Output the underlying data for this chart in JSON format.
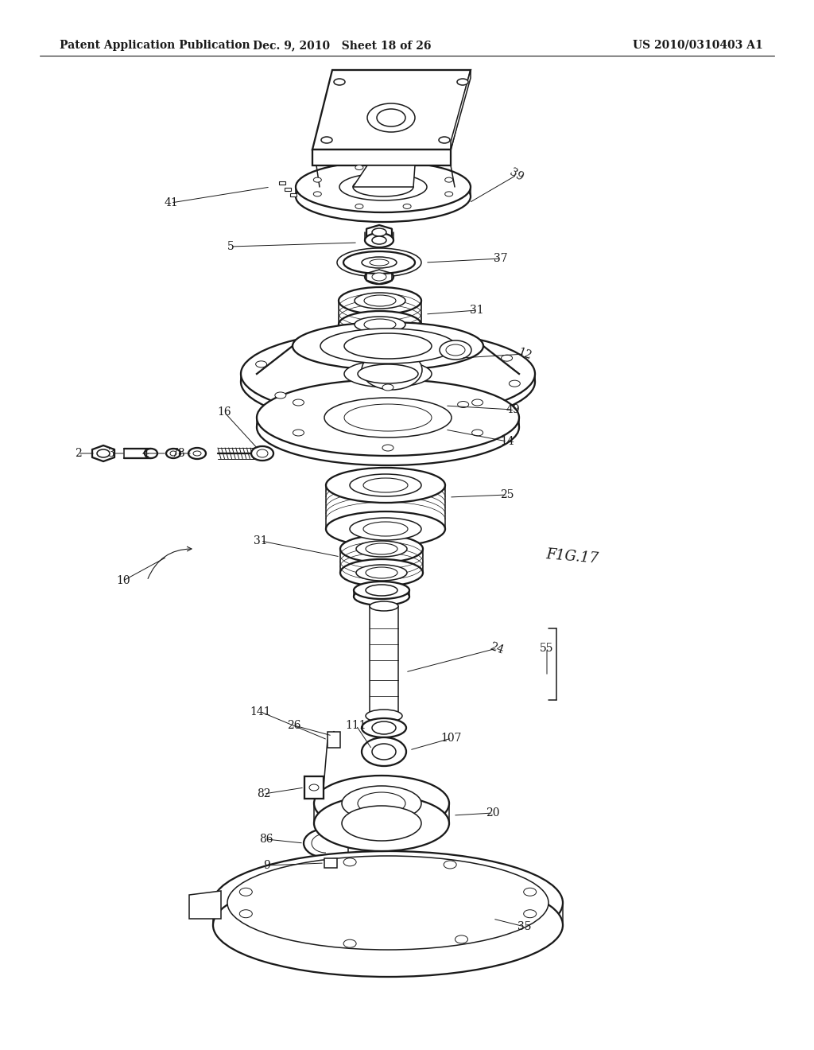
{
  "background_color": "#ffffff",
  "line_color": "#1a1a1a",
  "header_left": "Patent Application Publication",
  "header_center": "Dec. 9, 2010   Sheet 18 of 26",
  "header_right": "US 2010/0310403 A1",
  "figure_label": "F1G.17",
  "lw": 1.1
}
